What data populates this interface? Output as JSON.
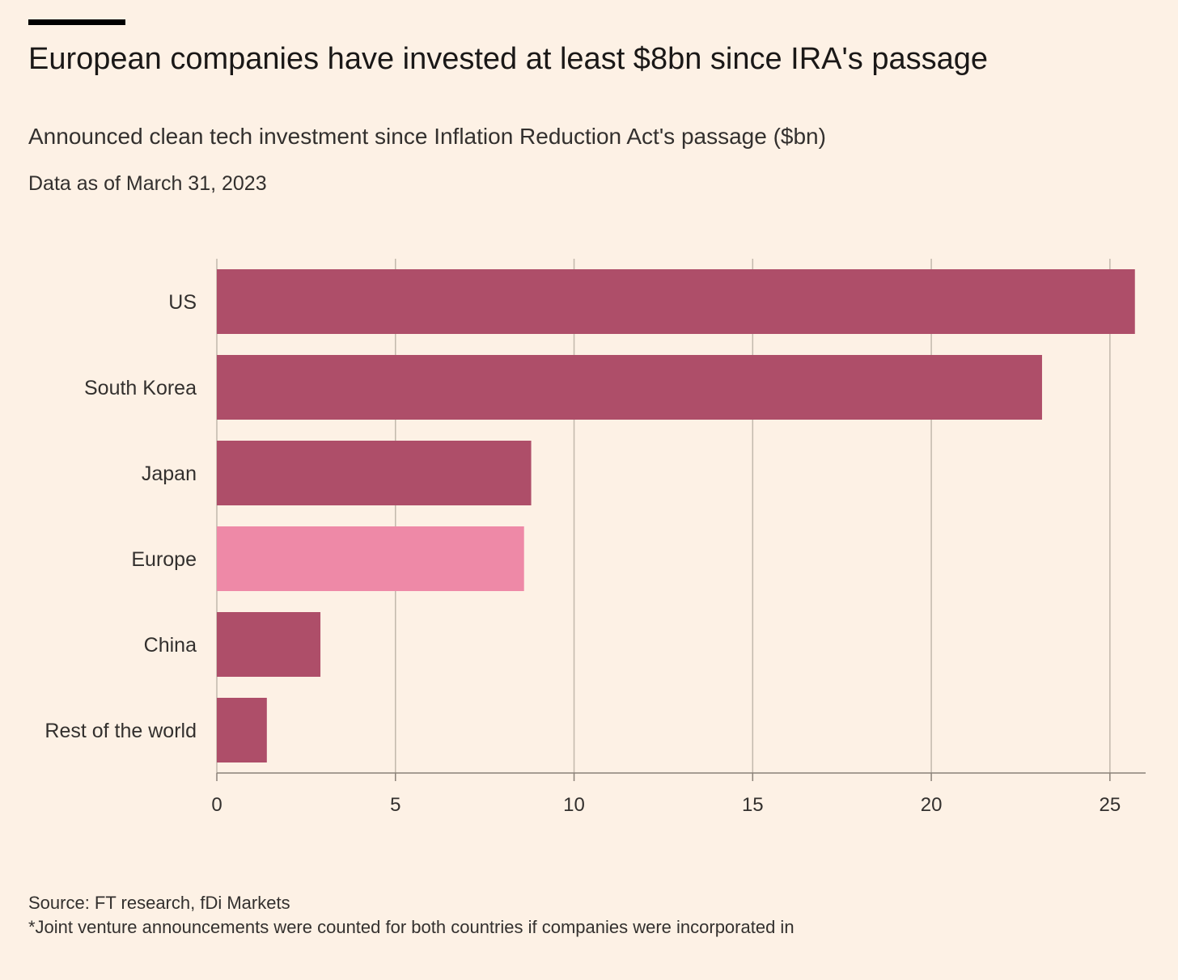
{
  "title": "European companies have invested at least $8bn since IRA's passage",
  "subtitle": "Announced clean tech investment since Inflation Reduction Act's passage ($bn)",
  "date_note": "Data as of March 31, 2023",
  "source": "Source: FT research, fDi Markets",
  "footnote": "*Joint venture announcements were counted for both countries if companies were incorporated in",
  "colors": {
    "background": "#fdf1e5",
    "bar_default": "#ae4e69",
    "bar_highlight": "#ee89a7",
    "gridline": "#c2b8ac",
    "axis": "#8a8178",
    "text": "#33302e"
  },
  "chart_data": {
    "type": "bar",
    "orientation": "horizontal",
    "categories": [
      "US",
      "South Korea",
      "Japan",
      "Europe",
      "China",
      "Rest of the world"
    ],
    "values": [
      25.7,
      23.1,
      8.8,
      8.6,
      2.9,
      1.4
    ],
    "highlight": "Europe",
    "xlim": [
      0,
      26
    ],
    "xticks": [
      0,
      5,
      10,
      15,
      20,
      25
    ],
    "xlabel": "",
    "ylabel": "",
    "grid": true
  }
}
